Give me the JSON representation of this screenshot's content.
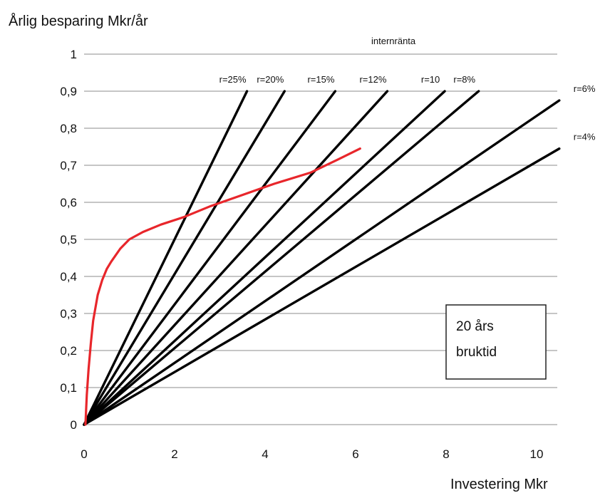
{
  "chart_data": {
    "type": "line",
    "ylabel": "Årlig besparing Mkr/år",
    "xlabel": "Investering Mkr",
    "xlim": [
      0,
      10.5
    ],
    "ylim": [
      0,
      1
    ],
    "x_ticks": [
      0,
      2,
      4,
      6,
      8,
      10
    ],
    "y_ticks": [
      0,
      0.1,
      0.2,
      0.3,
      0.4,
      0.5,
      0.6,
      0.7,
      0.8,
      0.9,
      1
    ],
    "y_tick_labels": [
      "0",
      "0,1",
      "0,2",
      "0,3",
      "0,4",
      "0,5",
      "0,6",
      "0,7",
      "0,8",
      "0,9",
      "1"
    ],
    "grid": "horizontal",
    "legend_title": "internränta",
    "series": [
      {
        "name": "r=25%",
        "color": "#000000",
        "x": [
          0,
          3.6
        ],
        "y": [
          0,
          0.9
        ]
      },
      {
        "name": "r=20%",
        "color": "#000000",
        "x": [
          0,
          4.43
        ],
        "y": [
          0,
          0.9
        ]
      },
      {
        "name": "r=15%",
        "color": "#000000",
        "x": [
          0,
          5.55
        ],
        "y": [
          0,
          0.9
        ]
      },
      {
        "name": "r=12%",
        "color": "#000000",
        "x": [
          0,
          6.7
        ],
        "y": [
          0,
          0.9
        ]
      },
      {
        "name": "r=10",
        "color": "#000000",
        "x": [
          0,
          7.97
        ],
        "y": [
          0,
          0.9
        ]
      },
      {
        "name": "r=8%",
        "color": "#000000",
        "x": [
          0,
          8.72
        ],
        "y": [
          0,
          0.9
        ]
      },
      {
        "name": "r=6%",
        "color": "#000000",
        "x": [
          0,
          10.5
        ],
        "y": [
          0,
          0.875
        ]
      },
      {
        "name": "r=4%",
        "color": "#000000",
        "x": [
          0,
          10.5
        ],
        "y": [
          0,
          0.745
        ]
      },
      {
        "color": "#e8262b",
        "x": [
          0.03,
          0.06,
          0.1,
          0.15,
          0.2,
          0.3,
          0.4,
          0.5,
          0.6,
          0.8,
          1.0,
          1.3,
          1.7,
          2.2,
          2.8,
          3.5,
          4.2,
          5.0,
          5.6,
          6.1
        ],
        "y": [
          0.0,
          0.08,
          0.15,
          0.22,
          0.28,
          0.35,
          0.39,
          0.42,
          0.44,
          0.475,
          0.5,
          0.52,
          0.54,
          0.56,
          0.59,
          0.62,
          0.65,
          0.68,
          0.715,
          0.745
        ]
      }
    ],
    "annotation": {
      "lines": [
        "20 års",
        "bruktid"
      ]
    }
  }
}
